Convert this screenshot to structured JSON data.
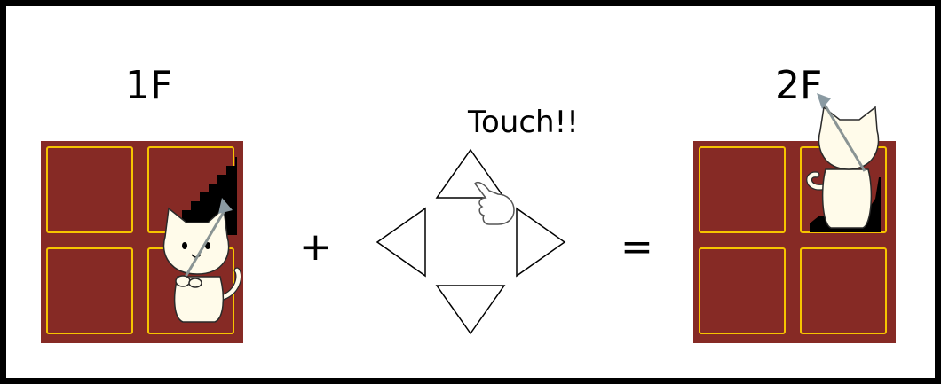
{
  "labels": {
    "floor_1": "1F",
    "floor_2": "2F",
    "plus": "+",
    "equals": "=",
    "touch": "Touch!!"
  },
  "colors": {
    "floor_tile": "#862a25",
    "tile_border": "#f6c400",
    "cat_body": "#fffbea",
    "outline": "#000000"
  },
  "icons": [
    "cat-icon",
    "staircase-icon",
    "pointing-hand-icon",
    "wand-icon"
  ]
}
